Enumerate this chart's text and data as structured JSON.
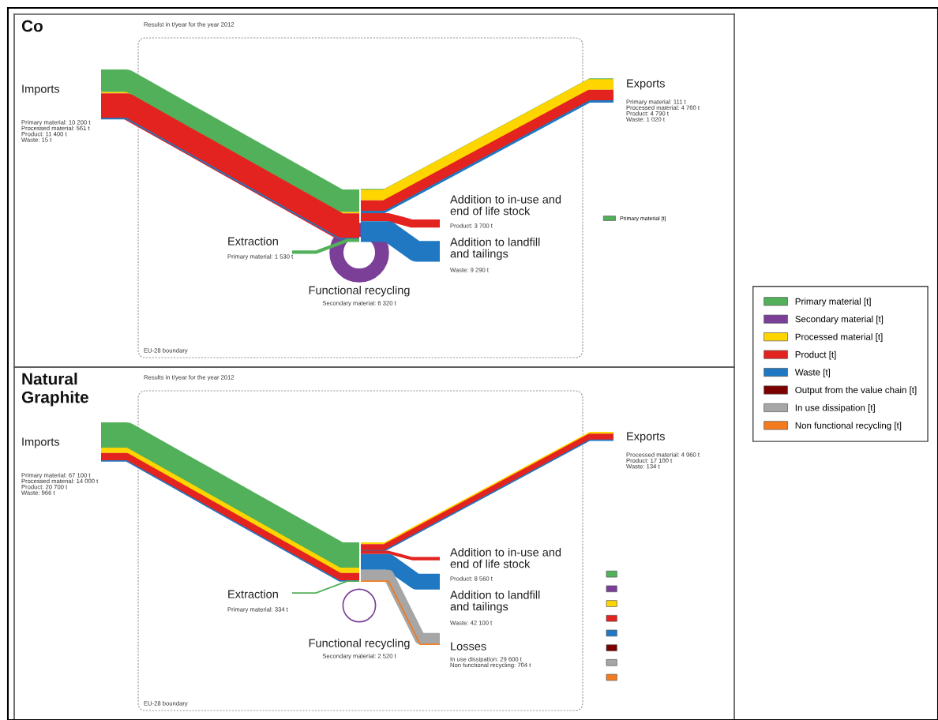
{
  "chart_data": [
    {
      "type": "other",
      "title": "Co",
      "subtitle": "Resulst in t/year for the year 2012",
      "annotations": [
        "EU-28 boundary"
      ],
      "legend": "right",
      "categories": [
        "Imports",
        "Exports",
        "Addition to in-use and end of life stock",
        "Addition to landfill and tailings",
        "Extraction",
        "Functional recycling"
      ],
      "series": [
        {
          "name": "Primary material [t]",
          "color": "#52b05a",
          "values": [
            10200,
            111,
            null,
            null,
            1530,
            null
          ],
          "value_labels": [
            "Primary material: 10 200 t",
            "Primary material: 111 t",
            null,
            null,
            "Primary material: 1 530 t",
            null
          ]
        },
        {
          "color": "#7b3f98",
          "values": [
            null,
            null,
            null,
            null,
            null,
            6320
          ],
          "value_labels": [
            null,
            null,
            null,
            null,
            null,
            "Secondary material: 6 320 t"
          ]
        },
        {
          "color": "#ffd500",
          "values": [
            561,
            4760,
            null,
            null,
            null,
            null
          ],
          "value_labels": [
            "Processed material: 561 t",
            "Processed material: 4 760 t",
            null,
            null,
            null,
            null
          ]
        },
        {
          "color": "#e3231f",
          "values": [
            11400,
            4790,
            3700,
            null,
            null,
            null
          ],
          "value_labels": [
            "Product: 11 400 t",
            "Product: 4 790 t",
            "Product: 3 700 t",
            null,
            null,
            null
          ]
        },
        {
          "color": "#1f78c1",
          "values": [
            15,
            1020,
            null,
            9290,
            null,
            null
          ],
          "value_labels": [
            "Waste: 15 t",
            "Waste: 1 020 t",
            null,
            "Waste: 9 290 t",
            null,
            null
          ]
        }
      ]
    },
    {
      "type": "other",
      "title": "Natural Graphite",
      "subtitle": "Results in t/year for the year 2012",
      "annotations": [
        "EU-28 boundary"
      ],
      "legend": "right",
      "categories": [
        "Imports",
        "Exports",
        "Addition to in-use and end of life stock",
        "Addition to landfill and tailings",
        "Extraction",
        "Functional recycling",
        "Losses"
      ],
      "series": [
        {
          "name": "Primary material [t]",
          "color": "#52b05a",
          "values": [
            67100,
            null,
            null,
            null,
            334,
            null,
            null
          ],
          "value_labels": [
            "Primary material: 67 100 t",
            null,
            null,
            null,
            "Primary material: 334 t",
            null,
            null
          ]
        },
        {
          "name": "Secondary material [t]",
          "color": "#7b3f98",
          "values": [
            null,
            null,
            null,
            null,
            null,
            2520,
            null
          ],
          "value_labels": [
            null,
            null,
            null,
            null,
            null,
            "Secondary material: 2 520 t",
            null
          ]
        },
        {
          "name": "Processed material [t]",
          "color": "#ffd500",
          "values": [
            14000,
            4960,
            null,
            null,
            null,
            null,
            null
          ],
          "value_labels": [
            "Processed material: 14 000 t",
            "Processed material: 4 960 t",
            null,
            null,
            null,
            null,
            null
          ]
        },
        {
          "name": "Product [t]",
          "color": "#e3231f",
          "values": [
            20700,
            17100,
            8560,
            null,
            null,
            null,
            null
          ],
          "value_labels": [
            "Product: 20 700 t",
            "Product: 17 100 t",
            "Product: 8 560 t",
            null,
            null,
            null,
            null
          ]
        },
        {
          "name": "Waste [t]",
          "color": "#1f78c1",
          "values": [
            966,
            134,
            null,
            42100,
            null,
            null,
            null
          ],
          "value_labels": [
            "Waste: 966 t",
            "Waste: 134 t",
            null,
            "Waste: 42 100 t",
            null,
            null,
            null
          ]
        },
        {
          "name": "Output from the value chain [t]",
          "color": "#7b0000",
          "values": [
            null,
            null,
            null,
            null,
            null,
            null,
            null
          ]
        },
        {
          "name": "In use dissipation [t]",
          "color": "#a6a6a6",
          "values": [
            null,
            null,
            null,
            null,
            null,
            null,
            29600
          ],
          "value_labels": [
            null,
            null,
            null,
            null,
            null,
            null,
            "In use dissipation: 29 600 t"
          ]
        },
        {
          "name": "Non functional recycling [t]",
          "color": "#f47b20",
          "values": [
            null,
            null,
            null,
            null,
            null,
            null,
            704
          ],
          "value_labels": [
            null,
            null,
            null,
            null,
            null,
            null,
            "Non functional recycling: 704 t"
          ]
        }
      ]
    }
  ]
}
